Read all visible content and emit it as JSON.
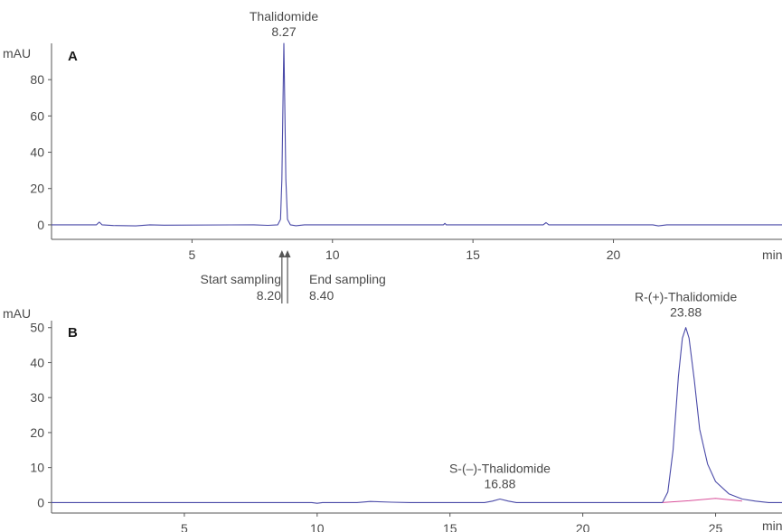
{
  "chart_data": [
    {
      "type": "line",
      "panel": "A",
      "ylabel": "mAU",
      "xlabel": "min",
      "xlim": [
        0,
        26
      ],
      "ylim": [
        -8,
        100
      ],
      "yticks": [
        0,
        20,
        40,
        60,
        80
      ],
      "xticks": [
        5,
        10,
        15,
        20
      ],
      "series": [
        {
          "color": "#4a4aa8",
          "x": [
            0,
            1.6,
            1.7,
            1.8,
            2.2,
            3.0,
            3.5,
            4.0,
            7.2,
            7.7,
            8.05,
            8.15,
            8.2,
            8.24,
            8.27,
            8.3,
            8.34,
            8.4,
            8.5,
            8.7,
            9.0,
            13.95,
            14.0,
            14.05,
            17.5,
            17.6,
            17.7,
            21.4,
            21.6,
            21.9,
            26
          ],
          "y": [
            0,
            0,
            1.5,
            0,
            -0.4,
            -0.6,
            0,
            -0.2,
            0,
            -0.3,
            0,
            3,
            25,
            70,
            100,
            70,
            25,
            3,
            0,
            -0.5,
            0,
            0,
            0.8,
            0,
            0,
            1.2,
            0,
            0,
            -0.6,
            0,
            0
          ]
        }
      ],
      "annotations": [
        {
          "name": "Thalidomide",
          "value": "8.27",
          "x": 8.27
        }
      ]
    },
    {
      "type": "line",
      "panel": "B",
      "ylabel": "mAU",
      "xlabel": "min",
      "xlim": [
        0,
        27.5
      ],
      "ylim": [
        -3,
        52
      ],
      "yticks": [
        0,
        10,
        20,
        30,
        40,
        50
      ],
      "xticks": [
        5,
        10,
        15,
        20,
        25
      ],
      "series": [
        {
          "color": "#4a4aa8",
          "x": [
            0,
            9.8,
            10.0,
            10.2,
            11.5,
            12.0,
            12.8,
            13.5,
            16.3,
            16.6,
            16.88,
            17.2,
            17.5,
            23.0,
            23.2,
            23.4,
            23.6,
            23.75,
            23.88,
            24.0,
            24.2,
            24.4,
            24.7,
            25.0,
            25.5,
            26.0,
            26.5,
            27.0,
            27.5
          ],
          "y": [
            0,
            0,
            -0.2,
            0,
            0,
            0.3,
            0.1,
            0,
            0,
            0.4,
            1.0,
            0.4,
            0,
            0,
            3,
            15,
            36,
            47,
            50,
            47,
            35,
            21,
            11,
            6,
            2.5,
            1,
            0.4,
            0,
            0
          ]
        },
        {
          "color": "#d9509a",
          "x": [
            23.0,
            24.0,
            25.0,
            26.0
          ],
          "y": [
            0,
            0.5,
            1.2,
            0.4
          ]
        }
      ],
      "annotations": [
        {
          "name": "S-(–)-Thalidomide",
          "value": "16.88",
          "x": 16.88
        },
        {
          "name": "R-(+)-Thalidomide",
          "value": "23.88",
          "x": 23.88
        }
      ]
    }
  ],
  "sampling": {
    "start_label": "Start sampling",
    "start_value": "8.20",
    "start_x": 8.2,
    "end_label": "End sampling",
    "end_value": "8.40",
    "end_x": 8.4
  }
}
